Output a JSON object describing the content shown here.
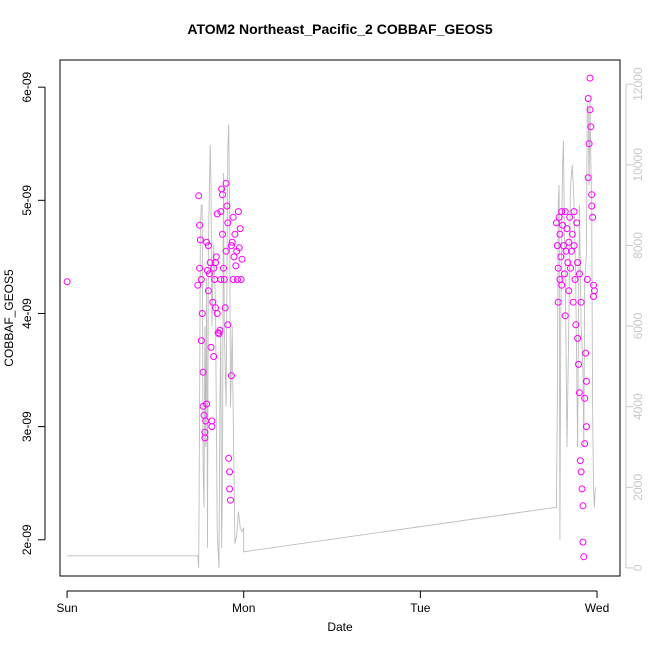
{
  "chart_data": {
    "type": "scatter",
    "title": "ATOM2 Northeast_Pacific_2 COBBAF_GEOS5",
    "xlabel": "Date",
    "ylabel": "COBBAF_GEOS5",
    "x_unit": "days since Sun 00:00",
    "xlim": [
      -0.04,
      3.13
    ],
    "ylim": [
      1.68e-09,
      6.24e-09
    ],
    "x_ticks": [
      {
        "v": 0,
        "label": "Sun"
      },
      {
        "v": 1,
        "label": "Mon"
      },
      {
        "v": 2,
        "label": "Tue"
      },
      {
        "v": 3,
        "label": "Wed"
      }
    ],
    "y_ticks": [
      {
        "v": 2e-09,
        "label": "2e-09"
      },
      {
        "v": 3e-09,
        "label": "3e-09"
      },
      {
        "v": 4e-09,
        "label": "4e-09"
      },
      {
        "v": 5e-09,
        "label": "5e-09"
      },
      {
        "v": 6e-09,
        "label": "6e-09"
      }
    ],
    "y2lim": [
      -200,
      12600
    ],
    "y2_ticks": [
      {
        "v": 0,
        "label": "0"
      },
      {
        "v": 2000,
        "label": "2000"
      },
      {
        "v": 4000,
        "label": "4000"
      },
      {
        "v": 6000,
        "label": "6000"
      },
      {
        "v": 8000,
        "label": "8000"
      },
      {
        "v": 10000,
        "label": "10000"
      },
      {
        "v": 12000,
        "label": "12000"
      }
    ],
    "colors": {
      "points": "#ff00ff",
      "altitude_line": "#bebebe",
      "axis": "#000000",
      "right_axis": "#c8c8c8"
    },
    "series": [
      {
        "kind": "points",
        "points": [
          [
            0.0,
            4.28e-09
          ],
          [
            0.74,
            4.25e-09
          ],
          [
            0.745,
            5.04e-09
          ],
          [
            0.75,
            4.78e-09
          ],
          [
            0.75,
            4.4e-09
          ],
          [
            0.755,
            4.65e-09
          ],
          [
            0.76,
            4.3e-09
          ],
          [
            0.76,
            3.76e-09
          ],
          [
            0.765,
            4e-09
          ],
          [
            0.77,
            3.48e-09
          ],
          [
            0.77,
            3.18e-09
          ],
          [
            0.775,
            3.1e-09
          ],
          [
            0.78,
            2.9e-09
          ],
          [
            0.78,
            2.95e-09
          ],
          [
            0.785,
            3.05e-09
          ],
          [
            0.79,
            3.2e-09
          ],
          [
            0.79,
            4.63e-09
          ],
          [
            0.795,
            4.38e-09
          ],
          [
            0.8,
            4.6e-09
          ],
          [
            0.8,
            4.2e-09
          ],
          [
            0.805,
            4.35e-09
          ],
          [
            0.81,
            4.45e-09
          ],
          [
            0.815,
            3.7e-09
          ],
          [
            0.82,
            3.05e-09
          ],
          [
            0.82,
            3e-09
          ],
          [
            0.825,
            4.1e-09
          ],
          [
            0.83,
            3.62e-09
          ],
          [
            0.83,
            4.4e-09
          ],
          [
            0.835,
            4.3e-09
          ],
          [
            0.84,
            4.45e-09
          ],
          [
            0.84,
            4.05e-09
          ],
          [
            0.845,
            4.5e-09
          ],
          [
            0.85,
            4.88e-09
          ],
          [
            0.85,
            4e-09
          ],
          [
            0.855,
            3.83e-09
          ],
          [
            0.86,
            3.82e-09
          ],
          [
            0.865,
            3.85e-09
          ],
          [
            0.87,
            4.3e-09
          ],
          [
            0.87,
            4.9e-09
          ],
          [
            0.875,
            5.1e-09
          ],
          [
            0.88,
            4.7e-09
          ],
          [
            0.88,
            5.05e-09
          ],
          [
            0.885,
            4.4e-09
          ],
          [
            0.89,
            4.3e-09
          ],
          [
            0.895,
            4.05e-09
          ],
          [
            0.9,
            4.55e-09
          ],
          [
            0.9,
            5.15e-09
          ],
          [
            0.905,
            4.95e-09
          ],
          [
            0.91,
            4.8e-09
          ],
          [
            0.91,
            3.9e-09
          ],
          [
            0.915,
            2.72e-09
          ],
          [
            0.92,
            2.6e-09
          ],
          [
            0.92,
            2.45e-09
          ],
          [
            0.925,
            2.35e-09
          ],
          [
            0.93,
            3.45e-09
          ],
          [
            0.93,
            4.6e-09
          ],
          [
            0.935,
            4.63e-09
          ],
          [
            0.94,
            4.3e-09
          ],
          [
            0.94,
            4.85e-09
          ],
          [
            0.945,
            4.5e-09
          ],
          [
            0.95,
            4.7e-09
          ],
          [
            0.955,
            4.42e-09
          ],
          [
            0.96,
            4.55e-09
          ],
          [
            0.965,
            4.3e-09
          ],
          [
            0.97,
            4.9e-09
          ],
          [
            0.975,
            4.58e-09
          ],
          [
            0.98,
            4.75e-09
          ],
          [
            0.985,
            4.3e-09
          ],
          [
            0.99,
            4.48e-09
          ],
          [
            2.77,
            4.8e-09
          ],
          [
            2.775,
            4.6e-09
          ],
          [
            2.78,
            4.4e-09
          ],
          [
            2.78,
            4.1e-09
          ],
          [
            2.785,
            4.85e-09
          ],
          [
            2.79,
            4.3e-09
          ],
          [
            2.79,
            4.7e-09
          ],
          [
            2.795,
            4.5e-09
          ],
          [
            2.8,
            4.9e-09
          ],
          [
            2.8,
            4.25e-09
          ],
          [
            2.805,
            4.78e-09
          ],
          [
            2.81,
            4.6e-09
          ],
          [
            2.815,
            4.35e-09
          ],
          [
            2.82,
            3.98e-09
          ],
          [
            2.82,
            4.9e-09
          ],
          [
            2.825,
            4.55e-09
          ],
          [
            2.83,
            4.75e-09
          ],
          [
            2.835,
            4.45e-09
          ],
          [
            2.84,
            4.2e-09
          ],
          [
            2.84,
            4.63e-09
          ],
          [
            2.845,
            4.85e-09
          ],
          [
            2.85,
            4.4e-09
          ],
          [
            2.855,
            4.55e-09
          ],
          [
            2.86,
            4.7e-09
          ],
          [
            2.865,
            4.1e-09
          ],
          [
            2.87,
            4.9e-09
          ],
          [
            2.87,
            4.6e-09
          ],
          [
            2.875,
            4.3e-09
          ],
          [
            2.88,
            3.9e-09
          ],
          [
            2.885,
            4.8e-09
          ],
          [
            2.89,
            4.45e-09
          ],
          [
            2.89,
            3.78e-09
          ],
          [
            2.895,
            3.55e-09
          ],
          [
            2.9,
            3.3e-09
          ],
          [
            2.9,
            4.35e-09
          ],
          [
            2.905,
            2.7e-09
          ],
          [
            2.91,
            4.1e-09
          ],
          [
            2.91,
            2.6e-09
          ],
          [
            2.915,
            2.45e-09
          ],
          [
            2.92,
            2.3e-09
          ],
          [
            2.92,
            1.98e-09
          ],
          [
            2.925,
            1.85e-09
          ],
          [
            2.93,
            2.85e-09
          ],
          [
            2.93,
            3.25e-09
          ],
          [
            2.935,
            3.65e-09
          ],
          [
            2.94,
            3.4e-09
          ],
          [
            2.94,
            3e-09
          ],
          [
            2.945,
            4.3e-09
          ],
          [
            2.95,
            5.2e-09
          ],
          [
            2.95,
            5.9e-09
          ],
          [
            2.955,
            5.5e-09
          ],
          [
            2.96,
            5.8e-09
          ],
          [
            2.96,
            6.08e-09
          ],
          [
            2.965,
            5.65e-09
          ],
          [
            2.97,
            4.95e-09
          ],
          [
            2.97,
            5.05e-09
          ],
          [
            2.975,
            4.85e-09
          ],
          [
            2.98,
            4.25e-09
          ],
          [
            2.98,
            4.15e-09
          ],
          [
            2.985,
            4.2e-09
          ]
        ]
      },
      {
        "kind": "line",
        "axis": "right",
        "points": [
          [
            0.0,
            300
          ],
          [
            0.74,
            300
          ],
          [
            0.745,
            0
          ],
          [
            0.75,
            4000
          ],
          [
            0.755,
            8500
          ],
          [
            0.76,
            9000
          ],
          [
            0.765,
            9000
          ],
          [
            0.77,
            2500
          ],
          [
            0.775,
            1500
          ],
          [
            0.78,
            6000
          ],
          [
            0.785,
            3000
          ],
          [
            0.79,
            7200
          ],
          [
            0.795,
            500
          ],
          [
            0.8,
            8000
          ],
          [
            0.805,
            9200
          ],
          [
            0.81,
            10500
          ],
          [
            0.815,
            9500
          ],
          [
            0.82,
            6000
          ],
          [
            0.83,
            8000
          ],
          [
            0.84,
            6500
          ],
          [
            0.85,
            1000
          ],
          [
            0.855,
            400
          ],
          [
            0.86,
            0
          ],
          [
            0.865,
            4000
          ],
          [
            0.87,
            6000
          ],
          [
            0.875,
            500
          ],
          [
            0.88,
            2000
          ],
          [
            0.885,
            9800
          ],
          [
            0.89,
            6000
          ],
          [
            0.9,
            4000
          ],
          [
            0.91,
            10400
          ],
          [
            0.915,
            11000
          ],
          [
            0.92,
            9000
          ],
          [
            0.925,
            4000
          ],
          [
            0.93,
            5000
          ],
          [
            0.935,
            6000
          ],
          [
            0.94,
            4000
          ],
          [
            0.95,
            600
          ],
          [
            0.96,
            800
          ],
          [
            0.97,
            1400
          ],
          [
            0.98,
            1000
          ],
          [
            0.99,
            900
          ],
          [
            1.0,
            1000
          ],
          [
            1.0,
            400
          ],
          [
            2.76,
            1500
          ],
          [
            2.77,
            1500
          ],
          [
            2.775,
            4000
          ],
          [
            2.78,
            9000
          ],
          [
            2.785,
            9500
          ],
          [
            2.79,
            700
          ],
          [
            2.795,
            6000
          ],
          [
            2.8,
            8500
          ],
          [
            2.805,
            10000
          ],
          [
            2.81,
            10600
          ],
          [
            2.815,
            8200
          ],
          [
            2.82,
            7500
          ],
          [
            2.83,
            3000
          ],
          [
            2.84,
            6000
          ],
          [
            2.85,
            9500
          ],
          [
            2.86,
            10000
          ],
          [
            2.87,
            9000
          ],
          [
            2.88,
            7000
          ],
          [
            2.89,
            3000
          ],
          [
            2.9,
            9000
          ],
          [
            2.91,
            6000
          ],
          [
            2.92,
            5000
          ],
          [
            2.925,
            3000
          ],
          [
            2.93,
            7000
          ],
          [
            2.94,
            7800
          ],
          [
            2.945,
            11500
          ],
          [
            2.95,
            11400
          ],
          [
            2.955,
            9500
          ],
          [
            2.96,
            11600
          ],
          [
            2.965,
            10000
          ],
          [
            2.97,
            9000
          ],
          [
            2.975,
            4000
          ],
          [
            2.98,
            2000
          ],
          [
            2.985,
            1500
          ],
          [
            2.99,
            2000
          ]
        ]
      }
    ]
  }
}
